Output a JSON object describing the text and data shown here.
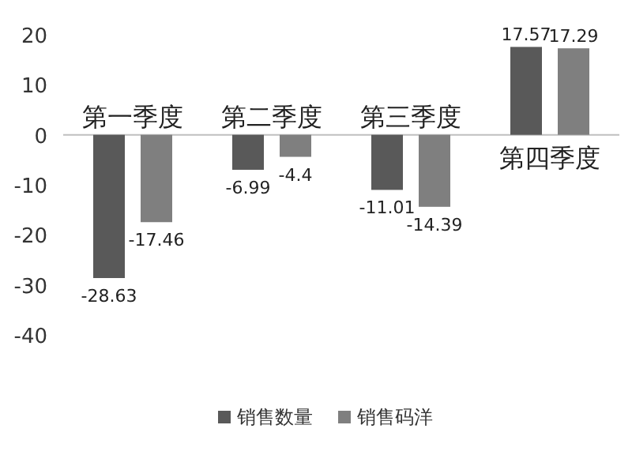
{
  "chart_data": {
    "type": "bar",
    "categories": [
      "第一季度",
      "第二季度",
      "第三季度",
      "第四季度"
    ],
    "series": [
      {
        "name": "销售数量",
        "color": "#595959",
        "values": [
          -28.63,
          -6.99,
          -11.01,
          17.57
        ]
      },
      {
        "name": "销售码洋",
        "color": "#7f7f7f",
        "values": [
          -17.46,
          -4.4,
          -14.39,
          17.29
        ]
      }
    ],
    "ylim": [
      -40,
      20
    ],
    "yticks": [
      -40,
      -30,
      -20,
      -10,
      0,
      10,
      20
    ],
    "data_labels": true,
    "legend": "bottom",
    "grid": false
  }
}
